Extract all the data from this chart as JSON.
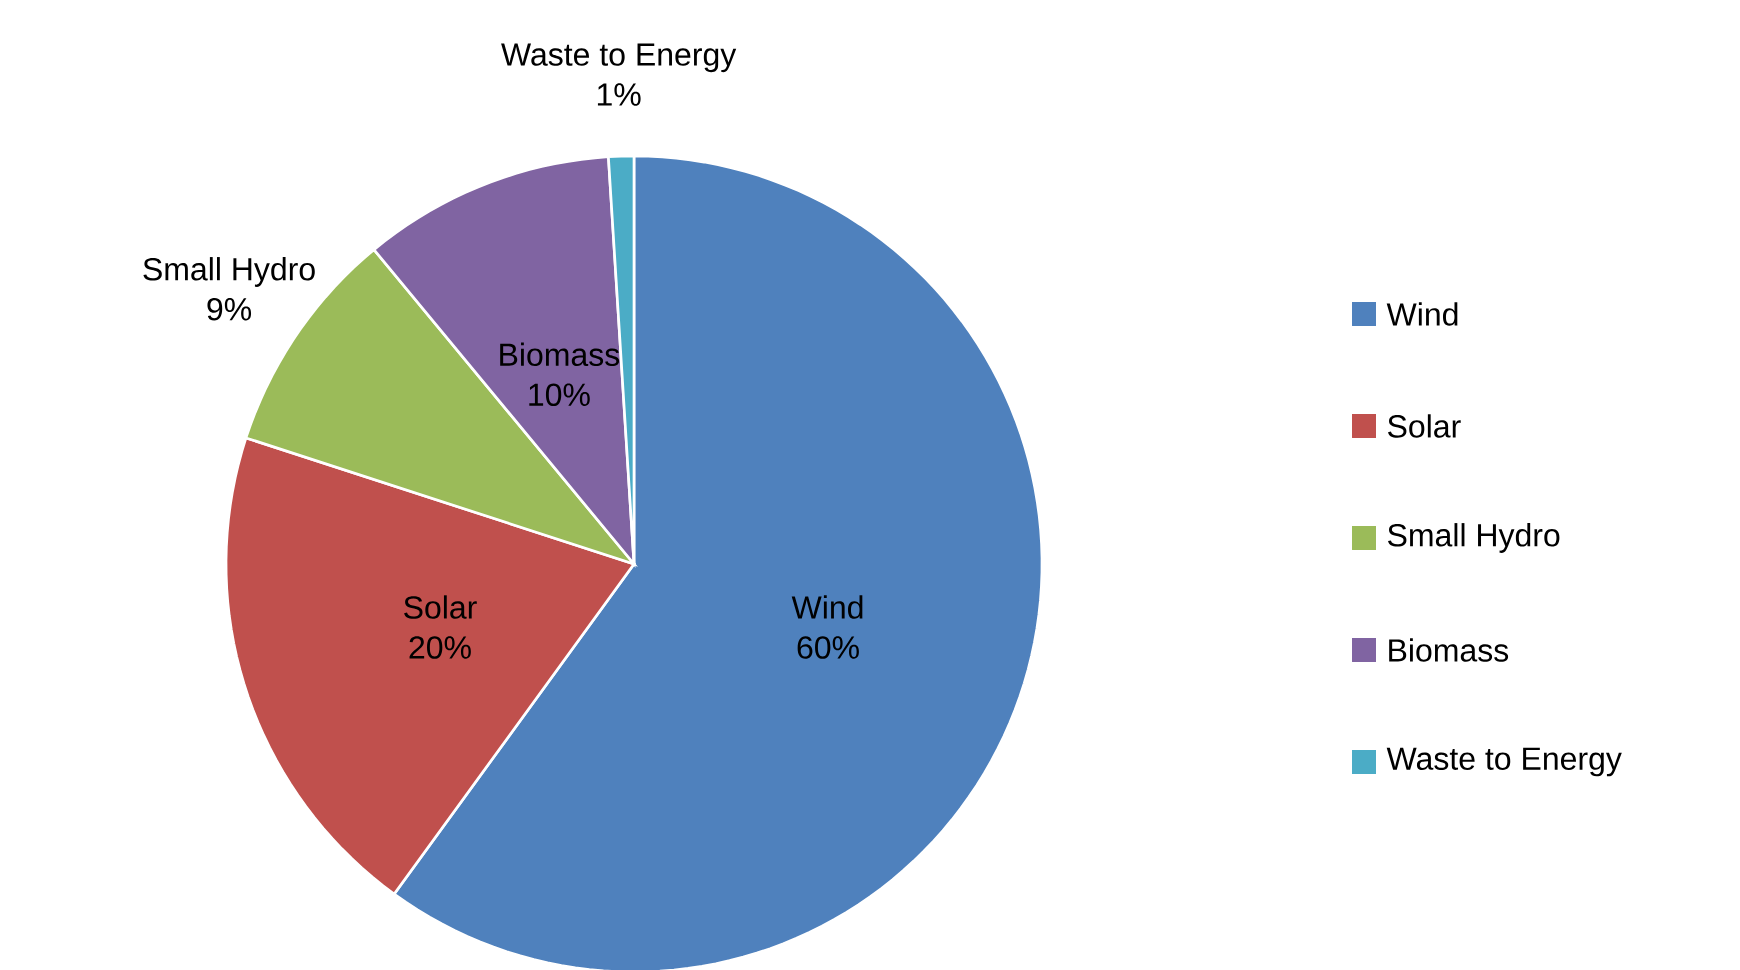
{
  "chart_data": {
    "type": "pie",
    "categories": [
      "Wind",
      "Solar",
      "Small Hydro",
      "Biomass",
      "Waste to Energy"
    ],
    "values": [
      60,
      20,
      9,
      10,
      1
    ],
    "value_labels": [
      "60%",
      "20%",
      "9%",
      "10%",
      "1%"
    ],
    "colors": [
      "#4f81bd",
      "#c0504d",
      "#9bbb59",
      "#8064a2",
      "#4bacc6"
    ],
    "legend": "right"
  }
}
